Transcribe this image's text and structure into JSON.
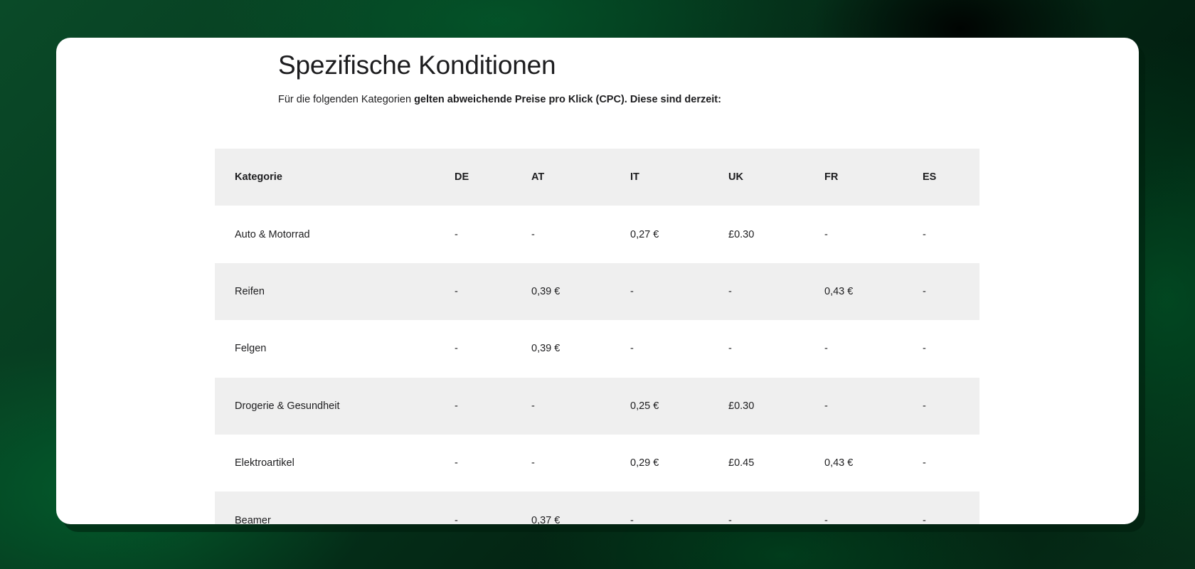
{
  "heading": {
    "title": "Spezifische Konditionen",
    "intro_regular": "Für die folgenden Kategorien ",
    "intro_bold": "gelten abweichende Preise pro Klick (CPC). Diese sind derzeit:"
  },
  "table": {
    "headers": [
      "Kategorie",
      "DE",
      "AT",
      "IT",
      "UK",
      "FR",
      "ES"
    ],
    "rows": [
      [
        "Auto & Motorrad",
        "-",
        "-",
        "0,27 €",
        "£0.30",
        "-",
        "-"
      ],
      [
        "Reifen",
        "-",
        "0,39 €",
        "-",
        "-",
        "0,43 €",
        "-"
      ],
      [
        "Felgen",
        "-",
        "0,39 €",
        "-",
        "-",
        "-",
        "-"
      ],
      [
        "Drogerie & Gesundheit",
        "-",
        "-",
        "0,25 €",
        "£0.30",
        "-",
        "-"
      ],
      [
        "Elektroartikel",
        "-",
        "-",
        "0,29 €",
        "£0.45",
        "0,43 €",
        "-"
      ],
      [
        "Beamer",
        "-",
        "0,37 €",
        "-",
        "-",
        "-",
        "-"
      ]
    ]
  },
  "colors": {
    "card_background": "#ffffff",
    "shaded_row": "#efefef",
    "text": "#1d1d1f",
    "backdrop_green": "#0a4a28"
  }
}
